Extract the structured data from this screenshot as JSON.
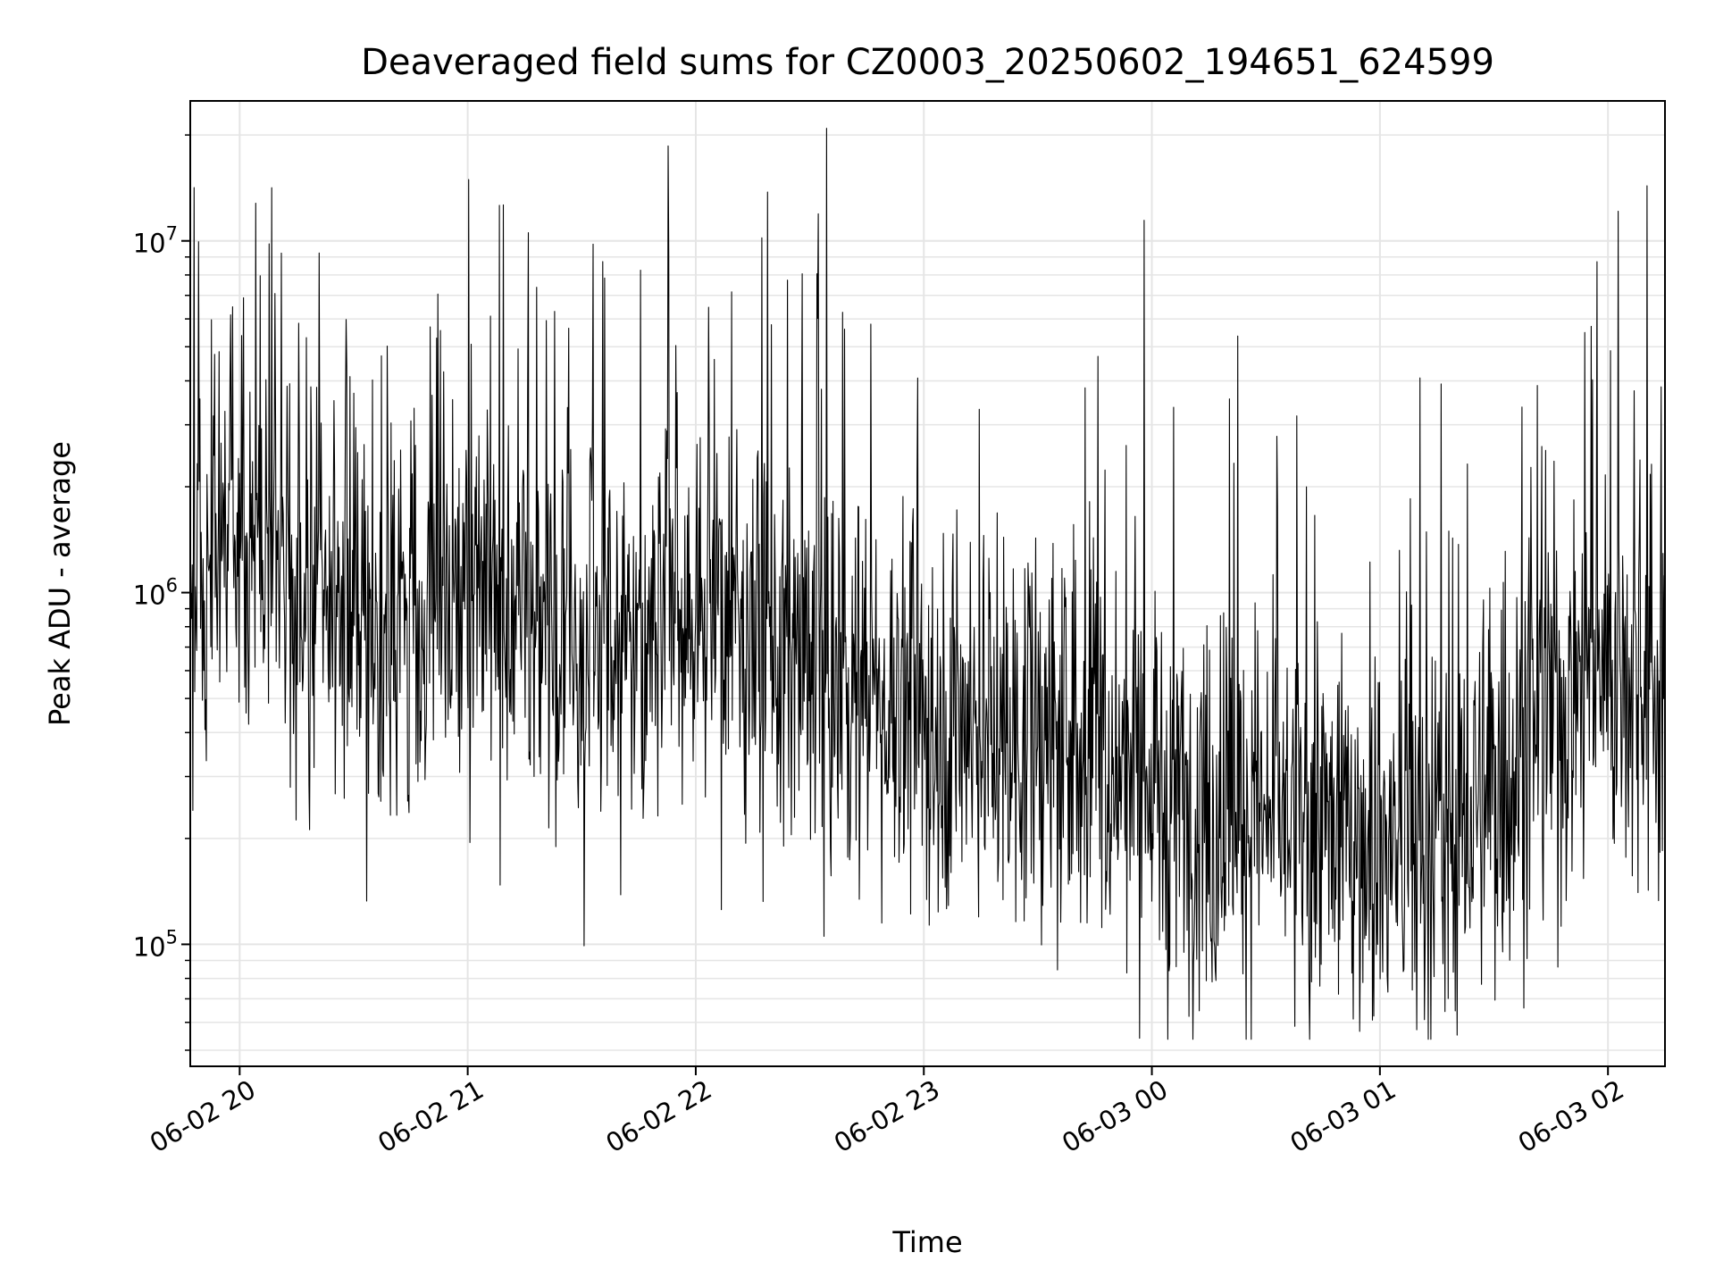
{
  "chart_data": {
    "type": "line",
    "title": "Deaveraged field sums for CZ0003_20250602_194651_624599",
    "xlabel": "Time",
    "ylabel": "Peak ADU - average",
    "yscale": "log",
    "ylim": [
      45000,
      25000000
    ],
    "xlim": [
      "2025-06-02 19:47",
      "2025-06-03 02:15"
    ],
    "grid": true,
    "line_color": "#000000",
    "grid_color": "#e5e5e5",
    "x_ticks": [
      {
        "value": "2025-06-02 20:00",
        "label": "06-02 20"
      },
      {
        "value": "2025-06-02 21:00",
        "label": "06-02 21"
      },
      {
        "value": "2025-06-02 22:00",
        "label": "06-02 22"
      },
      {
        "value": "2025-06-02 23:00",
        "label": "06-02 23"
      },
      {
        "value": "2025-06-03 00:00",
        "label": "06-03 00"
      },
      {
        "value": "2025-06-03 01:00",
        "label": "06-03 01"
      },
      {
        "value": "2025-06-03 02:00",
        "label": "06-03 02"
      }
    ],
    "y_ticks": [
      {
        "value": 100000,
        "base": "10",
        "exp": "5"
      },
      {
        "value": 1000000,
        "base": "10",
        "exp": "6"
      },
      {
        "value": 10000000,
        "base": "10",
        "exp": "7"
      }
    ],
    "series": [
      {
        "x": [
          "2025-06-02 19:47",
          "2025-06-02 19:53",
          "2025-06-02 19:57",
          "2025-06-02 20:02",
          "2025-06-02 20:07",
          "2025-06-02 20:13",
          "2025-06-02 20:20",
          "2025-06-02 20:30",
          "2025-06-02 20:40",
          "2025-06-02 20:50",
          "2025-06-02 21:00",
          "2025-06-02 21:10",
          "2025-06-02 21:20",
          "2025-06-02 21:30",
          "2025-06-02 21:40",
          "2025-06-02 21:50",
          "2025-06-02 22:00",
          "2025-06-02 22:10",
          "2025-06-02 22:20",
          "2025-06-02 22:30",
          "2025-06-02 22:40",
          "2025-06-02 22:50",
          "2025-06-02 23:00",
          "2025-06-02 23:10",
          "2025-06-02 23:20",
          "2025-06-02 23:30",
          "2025-06-02 23:40",
          "2025-06-02 23:50",
          "2025-06-03 00:00",
          "2025-06-03 00:10",
          "2025-06-03 00:20",
          "2025-06-03 00:30",
          "2025-06-03 00:40",
          "2025-06-03 00:50",
          "2025-06-03 01:00",
          "2025-06-03 01:10",
          "2025-06-03 01:20",
          "2025-06-03 01:30",
          "2025-06-03 01:40",
          "2025-06-03 01:50",
          "2025-06-03 02:00",
          "2025-06-03 02:10",
          "2025-06-03 02:15"
        ],
        "y": [
          800000,
          1200000,
          1500000,
          1400000,
          1300000,
          1100000,
          1000000,
          900000,
          850000,
          800000,
          900000,
          1000000,
          850000,
          700000,
          750000,
          800000,
          900000,
          850000,
          700000,
          600000,
          550000,
          500000,
          450000,
          420000,
          400000,
          380000,
          350000,
          320000,
          280000,
          250000,
          230000,
          220000,
          220000,
          210000,
          200000,
          180000,
          210000,
          280000,
          400000,
          500000,
          650000,
          600000,
          500000
        ]
      }
    ]
  }
}
